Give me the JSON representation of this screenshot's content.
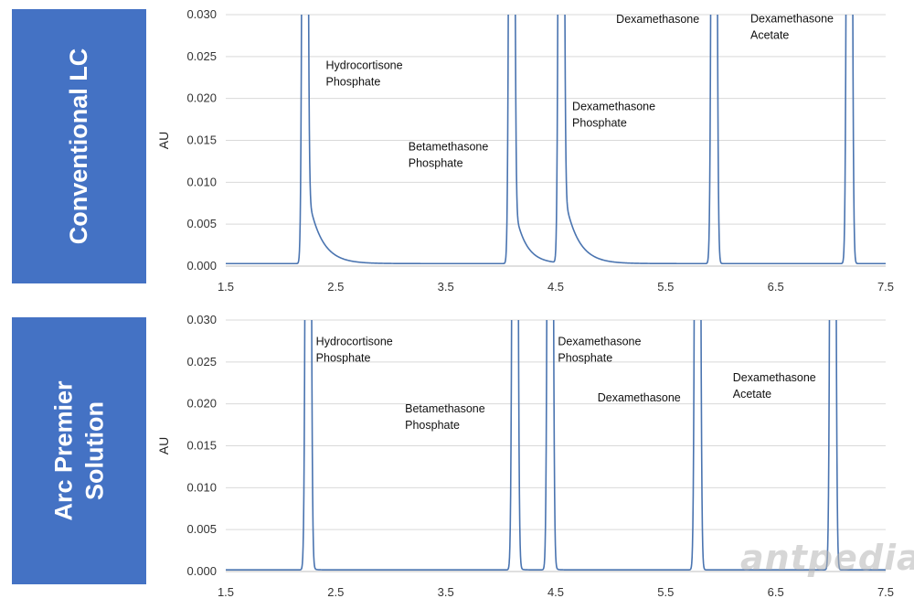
{
  "panels": {
    "top": {
      "label": "Conventional LC"
    },
    "bottom": {
      "label_line1": "Arc Premier",
      "label_line2": "Solution"
    }
  },
  "watermark": "antpedia",
  "colors": {
    "trace": "#4a74b0",
    "panel": "#4472c4"
  },
  "chart_data": [
    {
      "type": "line",
      "title": "Conventional LC",
      "xlabel": "",
      "ylabel": "AU",
      "xlim": [
        1.5,
        7.5
      ],
      "ylim": [
        0.0,
        0.03
      ],
      "grid": true,
      "x_ticks": [
        "1.5",
        "2.5",
        "3.5",
        "4.5",
        "5.5",
        "6.5",
        "7.5"
      ],
      "y_ticks": [
        "0.000",
        "0.005",
        "0.010",
        "0.015",
        "0.020",
        "0.025",
        "0.030"
      ],
      "baseline": 0.0003,
      "peaks": [
        {
          "name": "Hydrocortisone Phosphate",
          "rt": 2.22,
          "tail": 0.12
        },
        {
          "name": "Betamethasone Phosphate",
          "rt": 4.1,
          "tail": 0.1
        },
        {
          "name": "Dexamethasone Phosphate",
          "rt": 4.55,
          "tail": 0.12
        },
        {
          "name": "Dexamethasone",
          "rt": 5.94,
          "tail": 0.01
        },
        {
          "name": "Dexamethasone Acetate",
          "rt": 7.17,
          "tail": 0.01
        }
      ],
      "annotations": [
        {
          "lines": [
            "Hydrocortisone",
            "Phosphate"
          ],
          "x": 2.41,
          "y": 0.0235
        },
        {
          "lines": [
            "Betamethasone",
            "Phosphate"
          ],
          "x": 3.16,
          "y": 0.0138
        },
        {
          "lines": [
            "Dexamethasone",
            "Phosphate"
          ],
          "x": 4.65,
          "y": 0.0186
        },
        {
          "lines": [
            "Dexamethasone"
          ],
          "x": 5.05,
          "y": 0.029
        },
        {
          "lines": [
            "Dexamethasone",
            "Acetate"
          ],
          "x": 6.27,
          "y": 0.0291
        }
      ]
    },
    {
      "type": "line",
      "title": "Arc Premier Solution",
      "xlabel": "",
      "ylabel": "AU",
      "xlim": [
        1.5,
        7.5
      ],
      "ylim": [
        0.0,
        0.03
      ],
      "grid": true,
      "x_ticks": [
        "1.5",
        "2.5",
        "3.5",
        "4.5",
        "5.5",
        "6.5",
        "7.5"
      ],
      "y_ticks": [
        "0.000",
        "0.005",
        "0.010",
        "0.015",
        "0.020",
        "0.025",
        "0.030"
      ],
      "baseline": 0.0002,
      "peaks": [
        {
          "name": "Hydrocortisone Phosphate",
          "rt": 2.25,
          "tail": 0.02
        },
        {
          "name": "Betamethasone Phosphate",
          "rt": 4.13,
          "tail": 0.02
        },
        {
          "name": "Dexamethasone Phosphate",
          "rt": 4.45,
          "tail": 0.02
        },
        {
          "name": "Dexamethasone",
          "rt": 5.79,
          "tail": 0.005
        },
        {
          "name": "Dexamethasone Acetate",
          "rt": 7.02,
          "tail": 0.005
        }
      ],
      "annotations": [
        {
          "lines": [
            "Hydrocortisone",
            "Phosphate"
          ],
          "x": 2.32,
          "y": 0.027
        },
        {
          "lines": [
            "Betamethasone",
            "Phosphate"
          ],
          "x": 3.13,
          "y": 0.019
        },
        {
          "lines": [
            "Dexamethasone",
            "Phosphate"
          ],
          "x": 4.52,
          "y": 0.027
        },
        {
          "lines": [
            "Dexamethasone"
          ],
          "x": 4.88,
          "y": 0.0203
        },
        {
          "lines": [
            "Dexamethasone",
            "Acetate"
          ],
          "x": 6.11,
          "y": 0.0227
        }
      ]
    }
  ]
}
